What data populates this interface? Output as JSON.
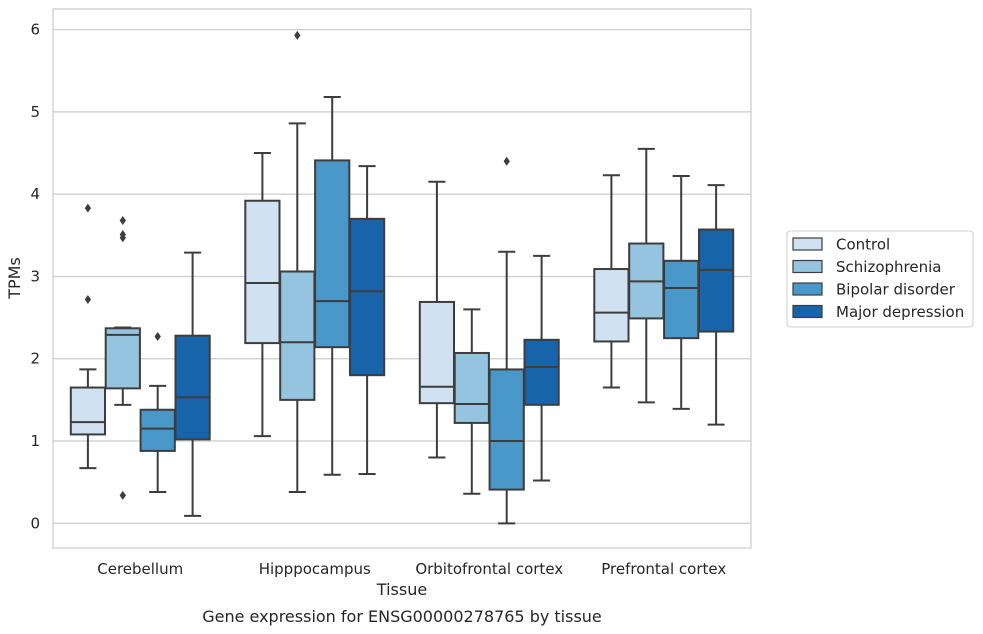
{
  "chart_data": {
    "type": "box",
    "xlabel": "Tissue",
    "ylabel": "TPMs",
    "caption": "Gene expression for ENSG00000278765 by tissue",
    "ylim": [
      -0.3,
      6.25
    ],
    "yticks": [
      0,
      1,
      2,
      3,
      4,
      5,
      6
    ],
    "grid": "horizontal",
    "legend_position": "right",
    "categories": [
      "Cerebellum",
      "Hipppocampus",
      "Orbitofrontal cortex",
      "Prefrontal cortex"
    ],
    "series": [
      {
        "name": "Control",
        "color": "#d0e1f2",
        "boxes": [
          {
            "whislo": 0.67,
            "q1": 1.08,
            "med": 1.23,
            "q3": 1.65,
            "whishi": 1.87,
            "fliers": [
              3.83,
              2.72
            ]
          },
          {
            "whislo": 1.06,
            "q1": 2.19,
            "med": 2.92,
            "q3": 3.92,
            "whishi": 4.5,
            "fliers": []
          },
          {
            "whislo": 0.8,
            "q1": 1.46,
            "med": 1.66,
            "q3": 2.69,
            "whishi": 4.15,
            "fliers": []
          },
          {
            "whislo": 1.65,
            "q1": 2.21,
            "med": 2.56,
            "q3": 3.09,
            "whishi": 4.23,
            "fliers": []
          }
        ]
      },
      {
        "name": "Schizophrenia",
        "color": "#94c4df",
        "boxes": [
          {
            "whislo": 1.44,
            "q1": 1.64,
            "med": 2.29,
            "q3": 2.37,
            "whishi": 2.38,
            "fliers": [
              3.68,
              3.51,
              3.47,
              0.34
            ]
          },
          {
            "whislo": 0.38,
            "q1": 1.5,
            "med": 2.2,
            "q3": 3.06,
            "whishi": 4.86,
            "fliers": [
              5.93
            ]
          },
          {
            "whislo": 0.36,
            "q1": 1.22,
            "med": 1.45,
            "q3": 2.07,
            "whishi": 2.6,
            "fliers": []
          },
          {
            "whislo": 1.47,
            "q1": 2.49,
            "med": 2.94,
            "q3": 3.4,
            "whishi": 4.55,
            "fliers": []
          }
        ]
      },
      {
        "name": "Bipolar disorder",
        "color": "#4a98c9",
        "boxes": [
          {
            "whislo": 0.38,
            "q1": 0.88,
            "med": 1.15,
            "q3": 1.38,
            "whishi": 1.67,
            "fliers": [
              2.27
            ]
          },
          {
            "whislo": 0.59,
            "q1": 2.14,
            "med": 2.7,
            "q3": 4.41,
            "whishi": 5.18,
            "fliers": []
          },
          {
            "whislo": 0.0,
            "q1": 0.41,
            "med": 1.0,
            "q3": 1.87,
            "whishi": 3.3,
            "fliers": [
              4.4
            ]
          },
          {
            "whislo": 1.39,
            "q1": 2.25,
            "med": 2.86,
            "q3": 3.19,
            "whishi": 4.22,
            "fliers": []
          }
        ]
      },
      {
        "name": "Major depression",
        "color": "#1764ab",
        "boxes": [
          {
            "whislo": 0.09,
            "q1": 1.02,
            "med": 1.53,
            "q3": 2.28,
            "whishi": 3.29,
            "fliers": []
          },
          {
            "whislo": 0.6,
            "q1": 1.8,
            "med": 2.82,
            "q3": 3.7,
            "whishi": 4.34,
            "fliers": []
          },
          {
            "whislo": 0.52,
            "q1": 1.44,
            "med": 1.9,
            "q3": 2.23,
            "whishi": 3.25,
            "fliers": []
          },
          {
            "whislo": 1.2,
            "q1": 2.33,
            "med": 3.08,
            "q3": 3.57,
            "whishi": 4.11,
            "fliers": []
          }
        ]
      }
    ]
  }
}
